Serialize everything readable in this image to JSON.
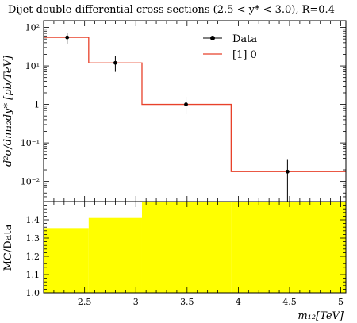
{
  "chart_data": [
    {
      "type": "line",
      "title": "Dijet double-differential cross sections (2.5 < y* < 3.0), R=0.4",
      "ylabel": "d²σ/dm₁₂dy* [pb/TeV]",
      "yscale": "log",
      "ylim": [
        0.003,
        150
      ],
      "xlim": [
        2.1,
        5.05
      ],
      "y_ticks": [
        {
          "value": 0.01,
          "label": "10⁻²"
        },
        {
          "value": 0.1,
          "label": "10⁻¹"
        },
        {
          "value": 1,
          "label": "1"
        },
        {
          "value": 10,
          "label": "10¹"
        },
        {
          "value": 100,
          "label": "10²"
        }
      ],
      "legend_position": "top-right",
      "series": [
        {
          "name": "Data",
          "style": "points-with-errorbars",
          "color": "#000000",
          "points": [
            {
              "x": 2.33,
              "y": 55,
              "err_low": 17,
              "err_high": 18
            },
            {
              "x": 2.8,
              "y": 12,
              "err_low": 5,
              "err_high": 6
            },
            {
              "x": 3.49,
              "y": 1.0,
              "err_low": 0.45,
              "err_high": 0.6
            },
            {
              "x": 4.48,
              "y": 0.018,
              "err_low": 0.0155,
              "err_high": 0.02
            }
          ]
        },
        {
          "name": "[1] 0",
          "style": "step",
          "color": "#e8412a",
          "bins": [
            {
              "x_low": 2.1,
              "x_high": 2.54,
              "y": 55
            },
            {
              "x_low": 2.54,
              "x_high": 3.06,
              "y": 12
            },
            {
              "x_low": 3.06,
              "x_high": 3.93,
              "y": 1.0
            },
            {
              "x_low": 3.93,
              "x_high": 5.05,
              "y": 0.018
            }
          ]
        }
      ]
    },
    {
      "type": "area",
      "xlabel": "m₁₂[TeV]",
      "ylabel": "MC/Data",
      "xlim": [
        2.1,
        5.05
      ],
      "ylim": [
        1.0,
        1.5
      ],
      "x_ticks": [
        {
          "value": 2.5,
          "label": "2.5"
        },
        {
          "value": 3.0,
          "label": "3"
        },
        {
          "value": 3.5,
          "label": "3.5"
        },
        {
          "value": 4.0,
          "label": "4"
        },
        {
          "value": 4.5,
          "label": "4.5"
        },
        {
          "value": 5.0,
          "label": "5"
        }
      ],
      "y_ticks": [
        {
          "value": 1.0,
          "label": "1.0"
        },
        {
          "value": 1.1,
          "label": "1.1"
        },
        {
          "value": 1.2,
          "label": "1.2"
        },
        {
          "value": 1.3,
          "label": "1.3"
        },
        {
          "value": 1.4,
          "label": "1.4"
        }
      ],
      "band_color": "#ffff00",
      "bins": [
        {
          "x_low": 2.1,
          "x_high": 2.54,
          "y": 1.355
        },
        {
          "x_low": 2.54,
          "x_high": 3.06,
          "y": 1.41
        },
        {
          "x_low": 3.06,
          "x_high": 3.93,
          "y": 1.5
        },
        {
          "x_low": 3.93,
          "x_high": 5.05,
          "y": 1.5
        }
      ]
    }
  ]
}
